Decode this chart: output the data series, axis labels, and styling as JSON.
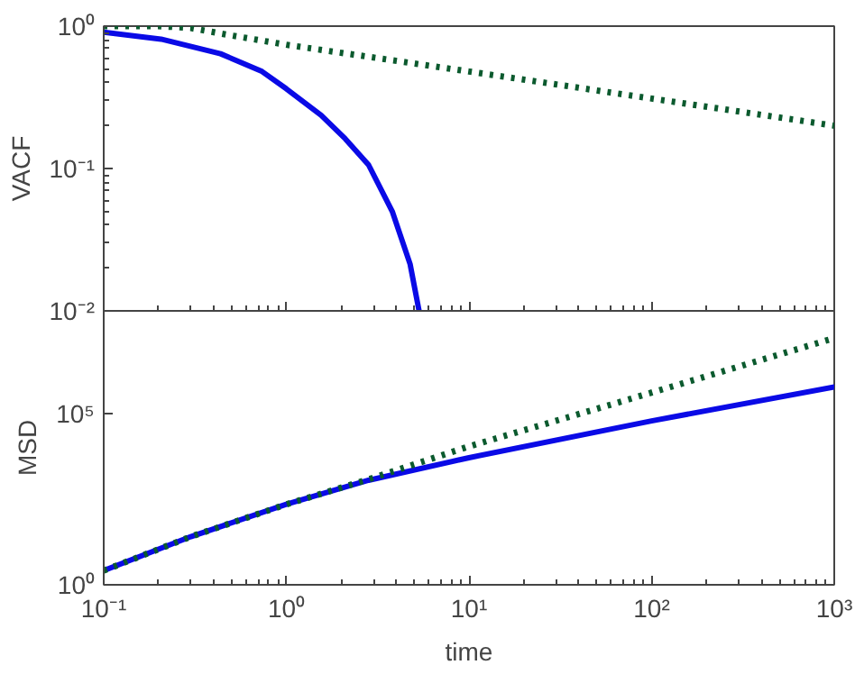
{
  "chart_data": [
    {
      "type": "line",
      "ylabel": "VACF",
      "log": "xy",
      "grid": false,
      "tick_labels": "y",
      "xlim": [
        0.1,
        1000
      ],
      "xticks": [
        {
          "value": 0.1,
          "label": null
        },
        {
          "value": 1,
          "label": null
        },
        {
          "value": 10,
          "label": null
        },
        {
          "value": 100,
          "label": null
        },
        {
          "value": 1000,
          "label": null
        }
      ],
      "ylim": [
        0.01,
        1
      ],
      "yticks": [
        {
          "value": 0.01,
          "label": "10⁻²"
        },
        {
          "value": 0.1,
          "label": "10⁻¹"
        },
        {
          "value": 1,
          "label": "10⁰"
        }
      ],
      "series": [
        {
          "color": "#0a0ae6",
          "line_style": "solid",
          "x": [
            0.1,
            0.206,
            0.436,
            0.736,
            1.0,
            1.55,
            2.1,
            2.82,
            3.8,
            4.76,
            5.33
          ],
          "values": [
            0.905,
            0.81,
            0.64,
            0.48,
            0.363,
            0.237,
            0.162,
            0.106,
            0.05,
            0.0213,
            0.01
          ]
        },
        {
          "color": "#0b5a2e",
          "line_style": "dotted",
          "x": [
            0.1,
            0.2,
            0.3,
            0.5,
            1,
            10,
            100,
            1000
          ],
          "values": [
            1.0,
            1.0,
            0.97,
            0.86,
            0.74,
            0.48,
            0.31,
            0.2
          ]
        }
      ]
    },
    {
      "type": "line",
      "ylabel": "MSD",
      "xlabel": "time",
      "log": "xy",
      "grid": false,
      "xlim": [
        0.1,
        1000
      ],
      "xticks": [
        {
          "value": 0.1,
          "label": "10⁻¹"
        },
        {
          "value": 1,
          "label": "10⁰"
        },
        {
          "value": 10,
          "label": "10¹"
        },
        {
          "value": 100,
          "label": "10²"
        },
        {
          "value": 1000,
          "label": "10³"
        }
      ],
      "ylim": [
        1,
        100000000
      ],
      "yticks": [
        {
          "value": 1,
          "label": "10⁰"
        },
        {
          "value": 100000,
          "label": "10⁵"
        }
      ],
      "series": [
        {
          "color": "#0a0ae6",
          "line_style": "solid",
          "x": [
            0.1,
            0.3,
            1,
            2.82,
            10,
            100,
            1000
          ],
          "values": [
            2.6,
            25.5,
            224,
            1130,
            5150,
            61000,
            600000
          ]
        },
        {
          "color": "#0b5a2e",
          "line_style": "dotted",
          "x": [
            0.1,
            0.3,
            1,
            2.82,
            10,
            100,
            1000
          ],
          "values": [
            2.6,
            25.5,
            224,
            1200,
            11000,
            410000,
            16000000
          ]
        }
      ]
    }
  ]
}
